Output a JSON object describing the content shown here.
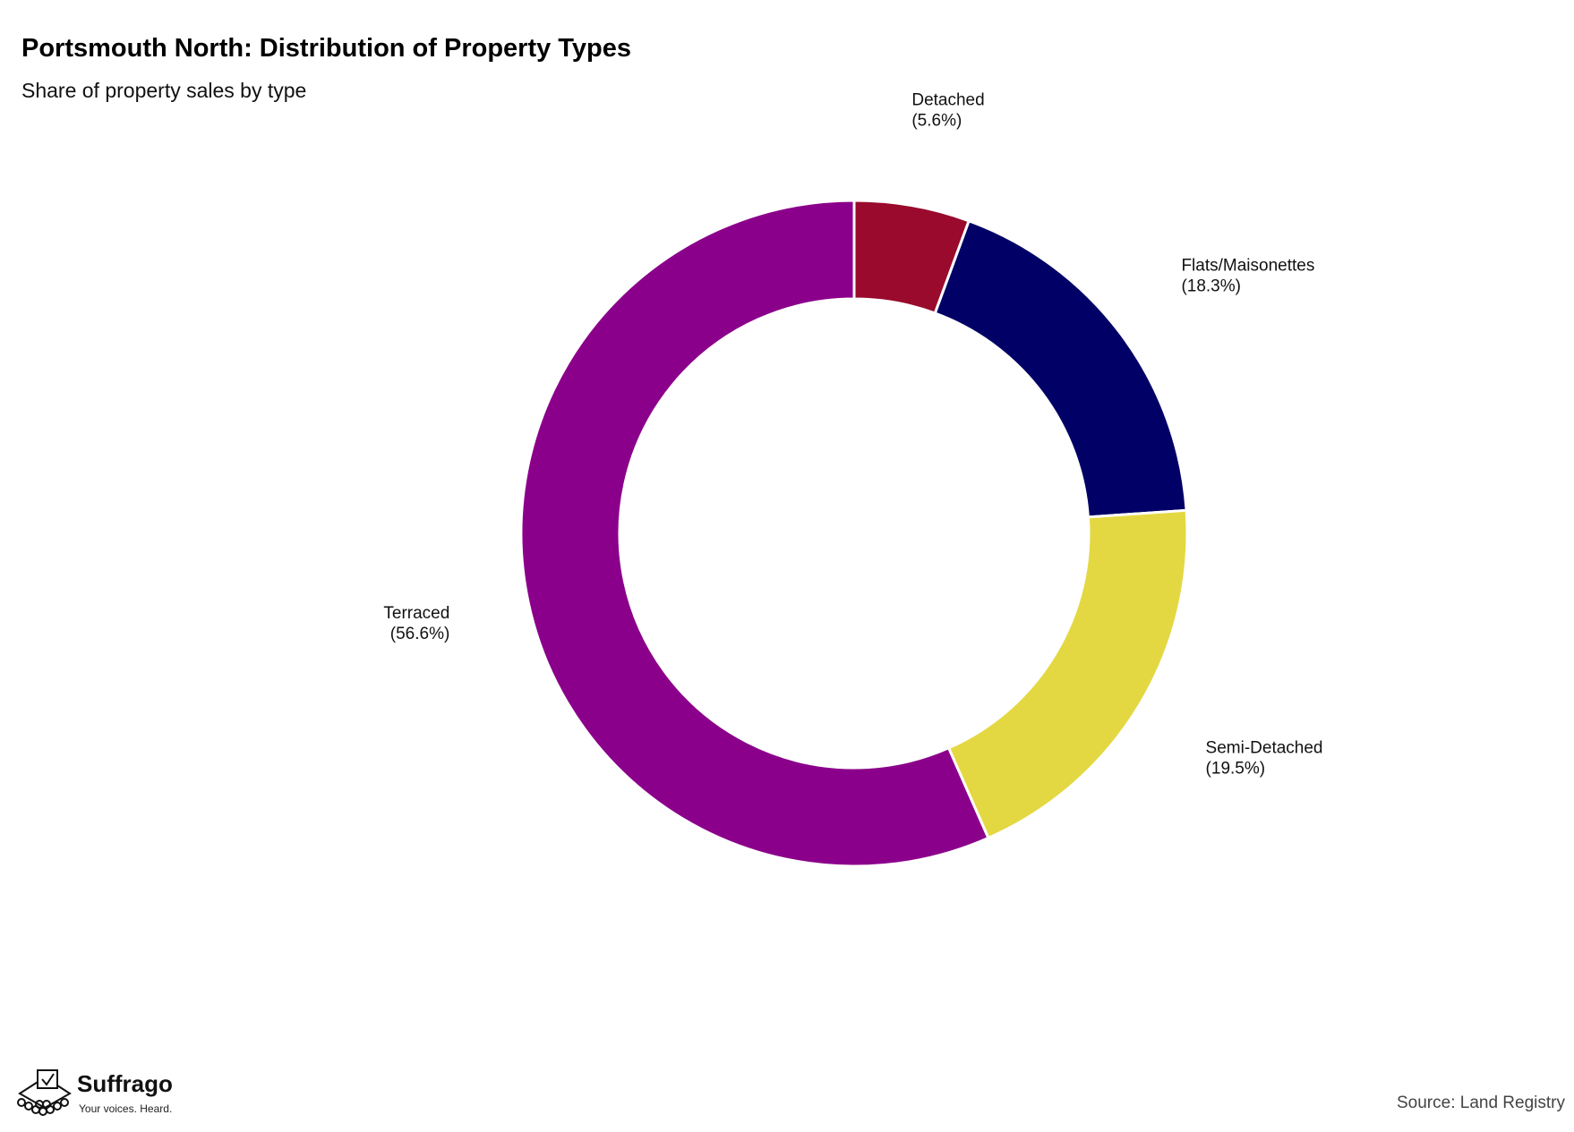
{
  "header": {
    "title": "Portsmouth North: Distribution of Property Types",
    "subtitle": "Share of property sales by type"
  },
  "footer": {
    "brand_name": "Suffrago",
    "brand_tagline": "Your voices. Heard.",
    "source": "Source: Land Registry"
  },
  "chart_data": {
    "type": "pie",
    "donut": true,
    "title": "Portsmouth North: Distribution of Property Types",
    "subtitle": "Share of property sales by type",
    "categories": [
      "Detached",
      "Flats/Maisonettes",
      "Semi-Detached",
      "Terraced"
    ],
    "values": [
      5.6,
      18.3,
      19.5,
      56.6
    ],
    "labels": [
      "(5.6%)",
      "(18.3%)",
      "(19.5%)",
      "(56.6%)"
    ],
    "colors": [
      "#990a2c",
      "#000066",
      "#e3d842",
      "#8b008b"
    ],
    "start": "12 o'clock, clockwise",
    "legend": "none"
  }
}
